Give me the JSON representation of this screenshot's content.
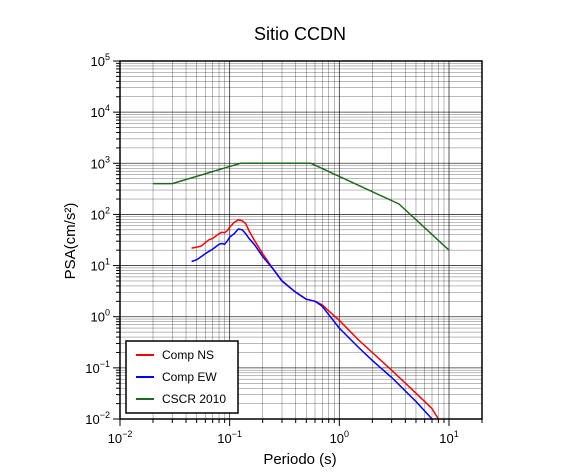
{
  "chart_data": {
    "type": "line",
    "title": "Sitio CCDN",
    "xlabel": "Periodo (s)",
    "ylabel": "PSA(cm/s²)",
    "xscale": "log",
    "yscale": "log",
    "xlim": [
      0.01,
      20
    ],
    "ylim": [
      0.01,
      100000
    ],
    "x_ticks": [
      0.01,
      0.1,
      1,
      10
    ],
    "x_tick_labels": [
      {
        "base": "10",
        "exp": "−2"
      },
      {
        "base": "10",
        "exp": "−1"
      },
      {
        "base": "10",
        "exp": "0"
      },
      {
        "base": "10",
        "exp": "1"
      }
    ],
    "y_ticks": [
      0.01,
      0.1,
      1,
      10,
      100,
      1000,
      10000,
      100000
    ],
    "y_tick_labels": [
      {
        "base": "10",
        "exp": "−2"
      },
      {
        "base": "10",
        "exp": "−1"
      },
      {
        "base": "10",
        "exp": "0"
      },
      {
        "base": "10",
        "exp": "1"
      },
      {
        "base": "10",
        "exp": "2"
      },
      {
        "base": "10",
        "exp": "3"
      },
      {
        "base": "10",
        "exp": "4"
      },
      {
        "base": "10",
        "exp": "5"
      }
    ],
    "grid": true,
    "legend_position": "bottom-left",
    "series": [
      {
        "name": "Comp NS",
        "color": "#ff0000",
        "x": [
          0.045,
          0.05,
          0.055,
          0.06,
          0.065,
          0.07,
          0.08,
          0.085,
          0.09,
          0.095,
          0.1,
          0.11,
          0.12,
          0.13,
          0.14,
          0.15,
          0.17,
          0.2,
          0.25,
          0.3,
          0.4,
          0.5,
          0.6,
          0.7,
          0.8,
          1.0,
          1.5,
          2,
          3,
          5,
          7,
          8
        ],
        "y": [
          22,
          23,
          24,
          28,
          32,
          34,
          42,
          45,
          44,
          48,
          56,
          70,
          78,
          75,
          66,
          48,
          30,
          17,
          8.5,
          5.0,
          3.0,
          2.2,
          2.0,
          1.7,
          1.3,
          0.85,
          0.35,
          0.2,
          0.09,
          0.032,
          0.016,
          0.01
        ]
      },
      {
        "name": "Comp EW",
        "color": "#0000ff",
        "x": [
          0.045,
          0.05,
          0.055,
          0.06,
          0.065,
          0.07,
          0.08,
          0.085,
          0.09,
          0.095,
          0.1,
          0.11,
          0.12,
          0.13,
          0.14,
          0.15,
          0.17,
          0.2,
          0.25,
          0.3,
          0.4,
          0.5,
          0.6,
          0.7,
          0.8,
          1.0,
          1.5,
          2,
          3,
          5,
          7
        ],
        "y": [
          12,
          13,
          15,
          17,
          19,
          21,
          26,
          27,
          26,
          30,
          36,
          42,
          52,
          50,
          42,
          34,
          25,
          15,
          8.5,
          5.0,
          3.0,
          2.2,
          2.0,
          1.6,
          1.1,
          0.6,
          0.25,
          0.14,
          0.065,
          0.022,
          0.01
        ]
      },
      {
        "name": "CSCR 2010",
        "color": "#1c6b1c",
        "x": [
          0.02,
          0.03,
          0.125,
          0.55,
          3.5,
          10
        ],
        "y": [
          400,
          400,
          1000,
          1000,
          160,
          20
        ]
      }
    ]
  }
}
